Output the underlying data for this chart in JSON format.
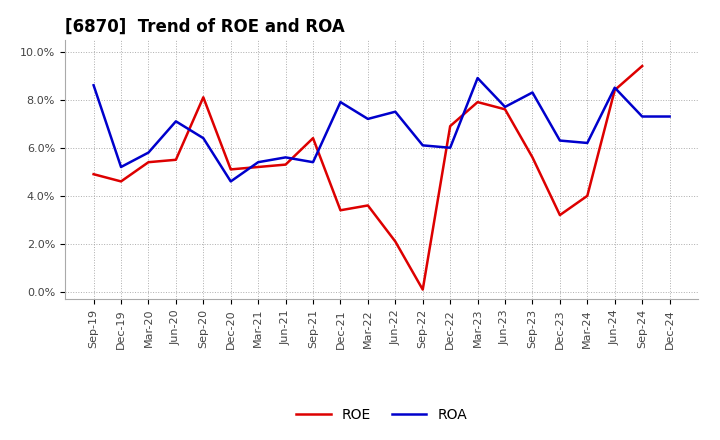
{
  "title": "[6870]  Trend of ROE and ROA",
  "labels": [
    "Sep-19",
    "Dec-19",
    "Mar-20",
    "Jun-20",
    "Sep-20",
    "Dec-20",
    "Mar-21",
    "Jun-21",
    "Sep-21",
    "Dec-21",
    "Mar-22",
    "Jun-22",
    "Sep-22",
    "Dec-22",
    "Mar-23",
    "Jun-23",
    "Sep-23",
    "Dec-23",
    "Mar-24",
    "Jun-24",
    "Sep-24",
    "Dec-24"
  ],
  "ROE": [
    4.9,
    4.6,
    5.4,
    5.5,
    8.1,
    5.1,
    5.2,
    5.3,
    6.4,
    3.4,
    3.6,
    2.1,
    0.1,
    6.9,
    7.9,
    7.6,
    5.6,
    3.2,
    4.0,
    8.4,
    9.4,
    null
  ],
  "ROA": [
    8.6,
    5.2,
    5.8,
    7.1,
    6.4,
    4.6,
    5.4,
    5.6,
    5.4,
    7.9,
    7.2,
    7.5,
    6.1,
    6.0,
    8.9,
    7.7,
    8.3,
    6.3,
    6.2,
    8.5,
    7.3,
    7.3
  ],
  "ROE_color": "#dd0000",
  "ROA_color": "#0000cc",
  "background_color": "#ffffff",
  "plot_bg_color": "#ffffff",
  "grid_color": "#999999",
  "ylim": [
    -0.3,
    10.5
  ],
  "yticks": [
    0.0,
    2.0,
    4.0,
    6.0,
    8.0,
    10.0
  ],
  "ytick_labels": [
    "0.0%",
    "2.0%",
    "4.0%",
    "6.0%",
    "8.0%",
    "10.0%"
  ],
  "line_width": 1.8,
  "legend_ROE": "ROE",
  "legend_ROA": "ROA",
  "title_fontsize": 12,
  "tick_fontsize": 8,
  "legend_fontsize": 10
}
